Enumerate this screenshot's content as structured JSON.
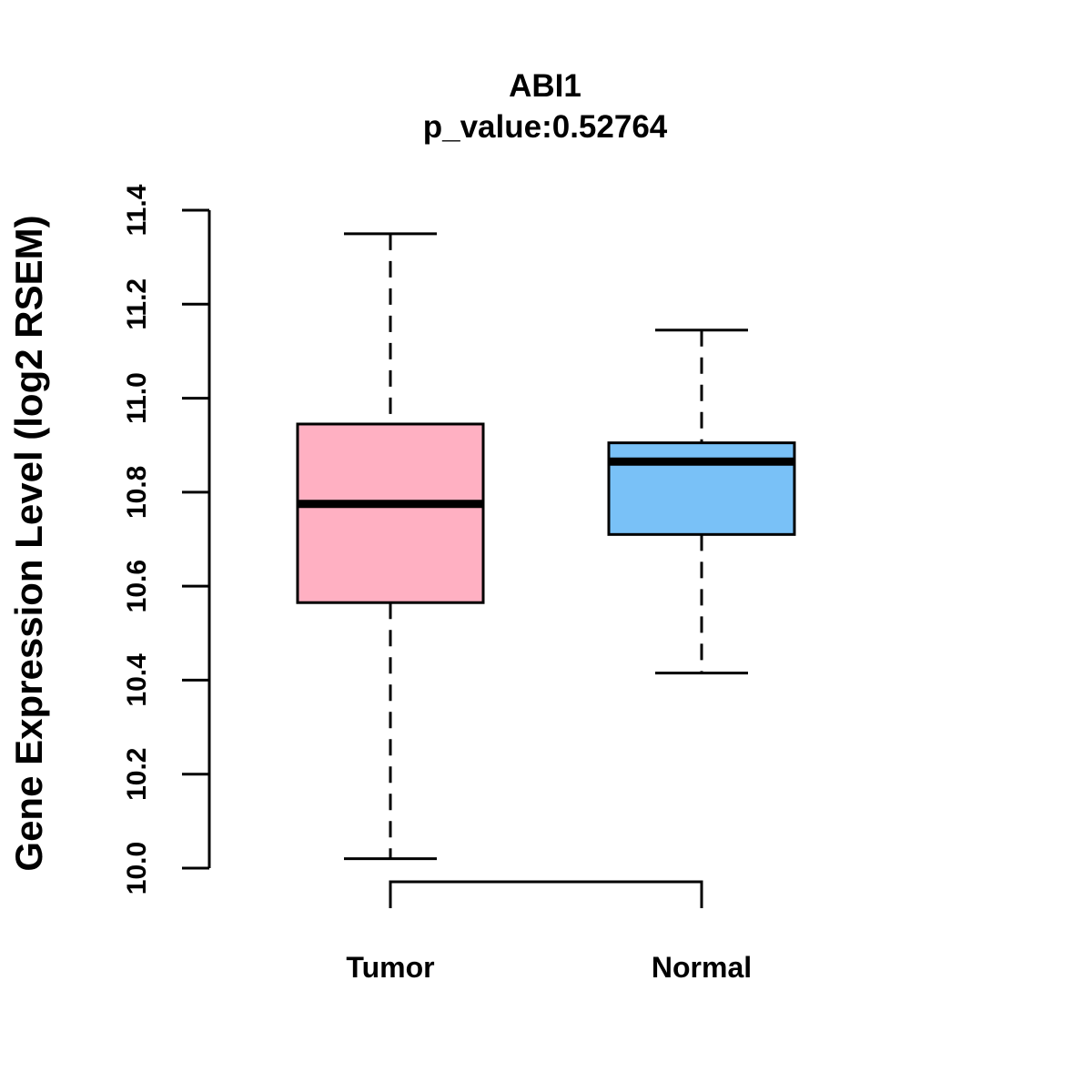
{
  "chart_data": {
    "type": "boxplot",
    "title": "ABI1",
    "subtitle": "p_value:0.52764",
    "ylabel": "Gene Expression Level (log2 RSEM)",
    "xlabel": "",
    "ylim": [
      10.0,
      11.4
    ],
    "yticks": [
      "10.0",
      "10.2",
      "10.4",
      "10.6",
      "10.8",
      "11.0",
      "11.2",
      "11.4"
    ],
    "grid": false,
    "groups": [
      {
        "name": "Tumor",
        "color": "#FFB0C2",
        "min": 10.02,
        "q1": 10.565,
        "median": 10.775,
        "q3": 10.945,
        "max": 11.35
      },
      {
        "name": "Normal",
        "color": "#79C1F7",
        "min": 10.415,
        "q1": 10.71,
        "median": 10.865,
        "q3": 10.905,
        "max": 11.145
      }
    ],
    "comparison_bracket": [
      "Tumor",
      "Normal"
    ]
  }
}
